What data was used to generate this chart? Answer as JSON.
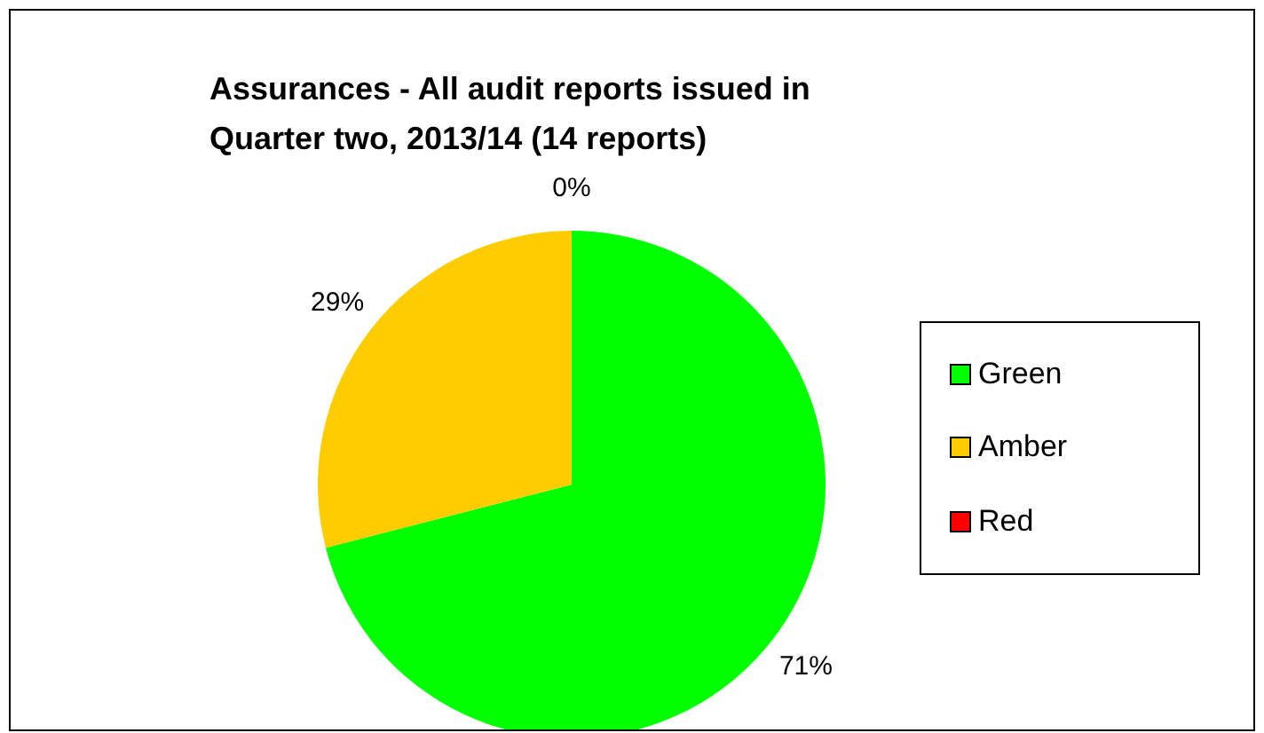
{
  "chart_data": {
    "type": "pie",
    "title": "Assurances - All audit reports issued in Quarter two, 2013/14 (14 reports)",
    "categories": [
      "Green",
      "Amber",
      "Red"
    ],
    "values": [
      71,
      29,
      0
    ],
    "colors": [
      "#00ff00",
      "#ffcc00",
      "#ff0000"
    ],
    "value_labels": [
      "71%",
      "29%",
      "0%"
    ],
    "legend": "right"
  }
}
